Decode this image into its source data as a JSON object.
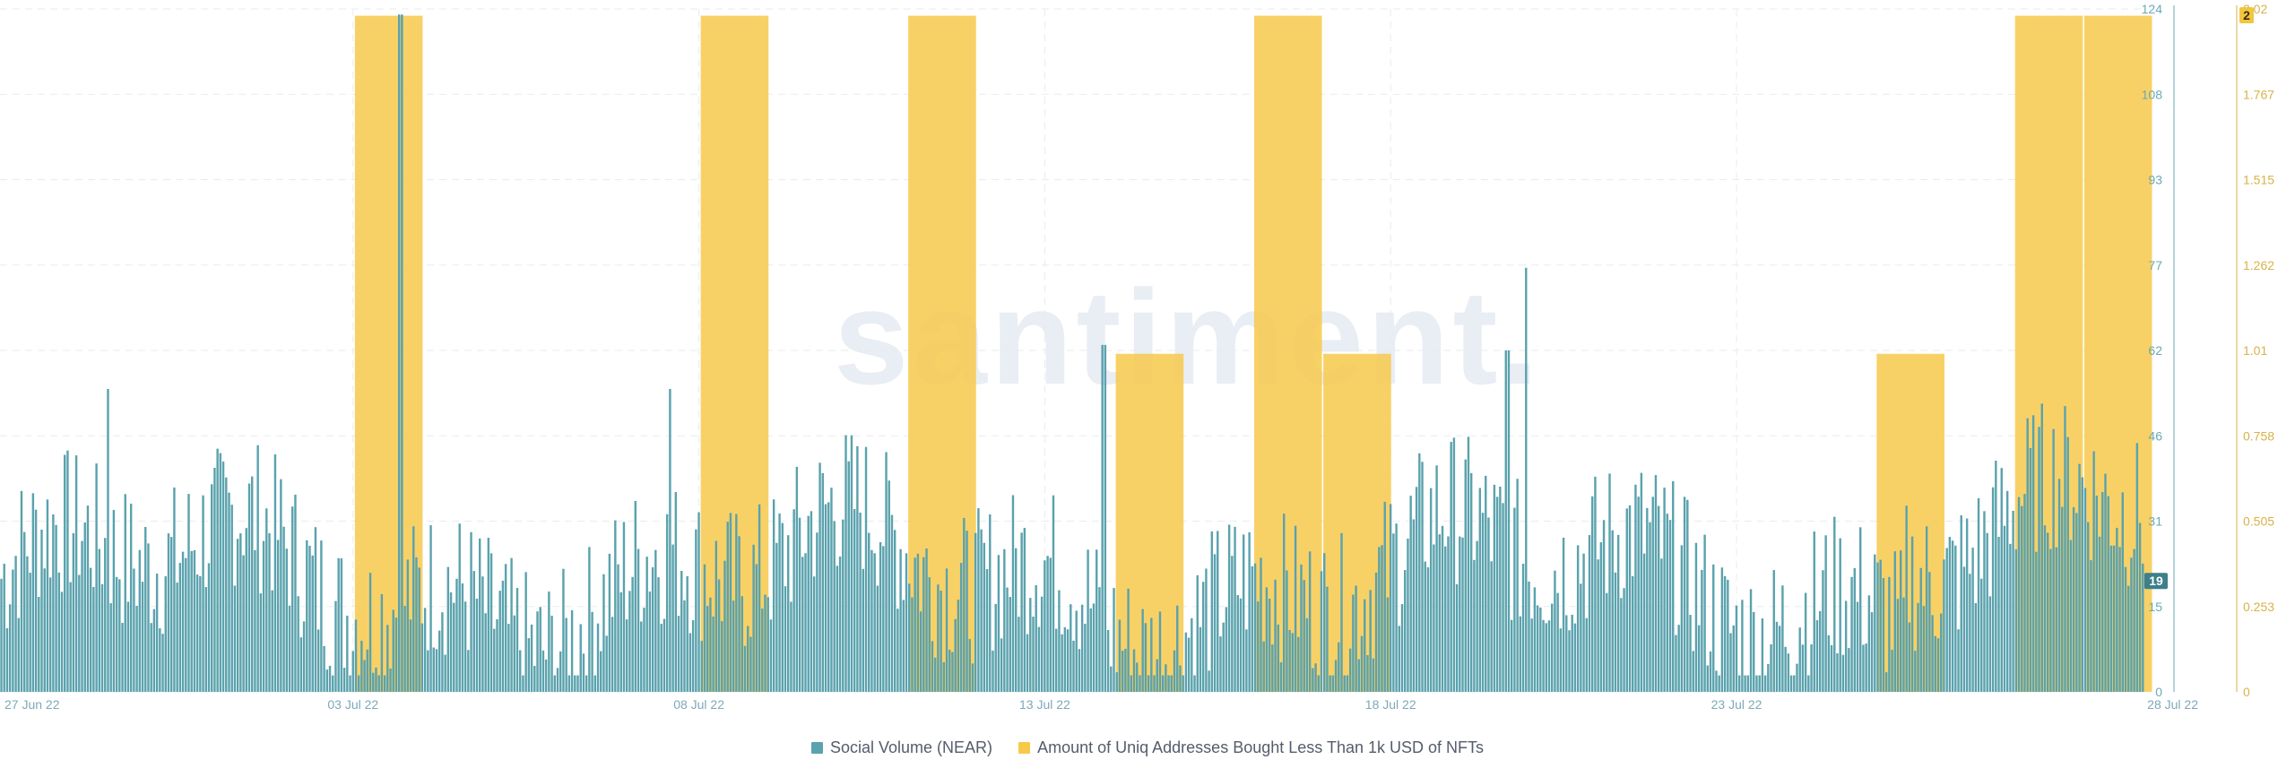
{
  "watermark": "santiment.",
  "chart_data": {
    "type": "bar",
    "x_labels": [
      "27 Jun 22",
      "03 Jul 22",
      "08 Jul 22",
      "13 Jul 22",
      "18 Jul 22",
      "23 Jul 22",
      "28 Jul 22"
    ],
    "y_left": {
      "ticks": [
        "0",
        "15",
        "31",
        "46",
        "62",
        "77",
        "93",
        "108",
        "124"
      ],
      "range": [
        0,
        124
      ],
      "color": "#6aaab4"
    },
    "y_right": {
      "ticks": [
        "0",
        "0.253",
        "0.505",
        "0.758",
        "1.01",
        "1.262",
        "1.515",
        "1.767",
        "2.02"
      ],
      "range": [
        0,
        2.02
      ],
      "color": "#d8b24a"
    },
    "current_left_value": "19",
    "current_right_value": "2",
    "grid": true,
    "legend_position": "bottom",
    "series": [
      {
        "name": "Social Volume (NEAR)",
        "color": "#5aa2ad",
        "axis": "left",
        "approx_hourly_range": [
          0,
          123
        ],
        "notable_peaks": [
          {
            "date": "02 Jul 22",
            "value": 123
          },
          {
            "date": "19 Jul 22",
            "value": 77
          },
          {
            "date": "13 Jul 22",
            "value": 63
          },
          {
            "date": "19 Jul 22",
            "value": 62
          },
          {
            "date": "07 Jul 22",
            "value": 55
          },
          {
            "date": "27 Jun 22",
            "value": 55
          }
        ]
      },
      {
        "name": "Amount of Uniq Addresses Bought Less Than 1k USD of NFTs",
        "color": "#f7c94b",
        "axis": "right",
        "daily_values": [
          {
            "date": "27 Jun 22",
            "value": 0
          },
          {
            "date": "28 Jun 22",
            "value": 0
          },
          {
            "date": "29 Jun 22",
            "value": 0
          },
          {
            "date": "30 Jun 22",
            "value": 0
          },
          {
            "date": "01 Jul 22",
            "value": 2
          },
          {
            "date": "02 Jul 22",
            "value": 0
          },
          {
            "date": "03 Jul 22",
            "value": 0
          },
          {
            "date": "04 Jul 22",
            "value": 0
          },
          {
            "date": "05 Jul 22",
            "value": 0
          },
          {
            "date": "06 Jul 22",
            "value": 2
          },
          {
            "date": "07 Jul 22",
            "value": 0
          },
          {
            "date": "08 Jul 22",
            "value": 0
          },
          {
            "date": "09 Jul 22",
            "value": 2
          },
          {
            "date": "10 Jul 22",
            "value": 0
          },
          {
            "date": "11 Jul 22",
            "value": 0
          },
          {
            "date": "12 Jul 22",
            "value": 1
          },
          {
            "date": "13 Jul 22",
            "value": 0
          },
          {
            "date": "14 Jul 22",
            "value": 2
          },
          {
            "date": "15 Jul 22",
            "value": 1
          },
          {
            "date": "16 Jul 22",
            "value": 0
          },
          {
            "date": "17 Jul 22",
            "value": 0
          },
          {
            "date": "18 Jul 22",
            "value": 0
          },
          {
            "date": "19 Jul 22",
            "value": 0
          },
          {
            "date": "20 Jul 22",
            "value": 0
          },
          {
            "date": "21 Jul 22",
            "value": 0
          },
          {
            "date": "22 Jul 22",
            "value": 0
          },
          {
            "date": "23 Jul 22",
            "value": 1
          },
          {
            "date": "24 Jul 22",
            "value": 0
          },
          {
            "date": "25 Jul 22",
            "value": 2
          },
          {
            "date": "26 Jul 22",
            "value": 2
          }
        ]
      }
    ]
  }
}
